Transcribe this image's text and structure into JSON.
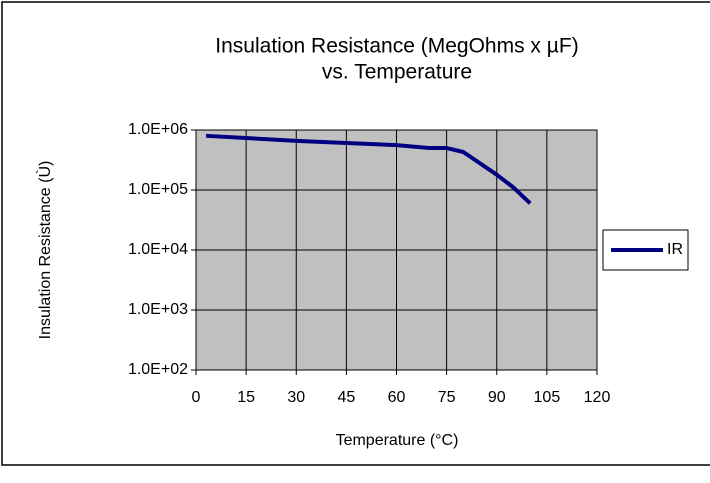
{
  "chart_data": {
    "type": "line",
    "title": [
      "Insulation Resistance (MegOhms x µF)",
      "vs. Temperature"
    ],
    "x_label": "Temperature (°C)",
    "y_label": "Insulation Resistance (Ù)",
    "x": [
      3,
      30,
      60,
      70,
      75,
      80,
      90,
      95,
      100
    ],
    "series": [
      {
        "name": "IR",
        "color": "#000080",
        "values": [
          800000,
          660000,
          560000,
          500000,
          500000,
          430000,
          180000,
          110000,
          60000
        ]
      }
    ],
    "xlim": [
      0,
      120
    ],
    "xticks": [
      0,
      15,
      30,
      45,
      60,
      75,
      90,
      105,
      120
    ],
    "ylim": [
      100,
      1000000
    ],
    "log_y": true,
    "yticks": [
      {
        "value": 100,
        "label": "1.0E+02"
      },
      {
        "value": 1000,
        "label": "1.0E+03"
      },
      {
        "value": 10000,
        "label": "1.0E+04"
      },
      {
        "value": 100000,
        "label": "1.0E+05"
      },
      {
        "value": 1000000,
        "label": "1.0E+06"
      }
    ],
    "grid": true,
    "plot_background": "#c0c0c0",
    "legend": "right"
  }
}
